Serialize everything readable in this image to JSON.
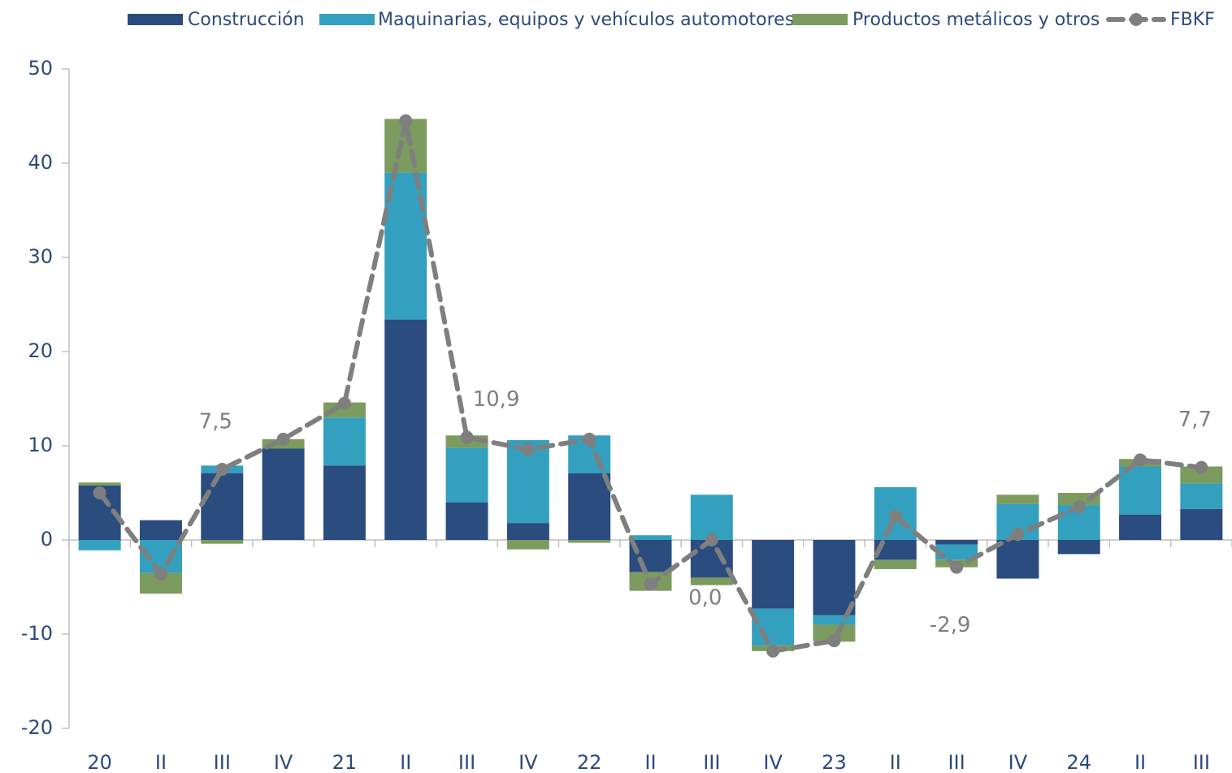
{
  "chart_data": {
    "type": "stacked_bar_line",
    "categories": [
      "20",
      "II",
      "III",
      "IV",
      "21",
      "II",
      "III",
      "IV",
      "22",
      "II",
      "III",
      "IV",
      "23",
      "II",
      "III",
      "IV",
      "24",
      "II",
      "III"
    ],
    "series": [
      {
        "name": "Construcción",
        "type": "bar",
        "color": "#2b4c7e",
        "values": [
          5.8,
          2.1,
          7.1,
          9.7,
          7.9,
          23.4,
          4.0,
          1.8,
          7.1,
          -3.4,
          -4.0,
          -7.3,
          -8.0,
          -2.1,
          -0.5,
          -4.1,
          -1.5,
          2.7,
          3.3
        ]
      },
      {
        "name": "Maquinarias, equipos y vehículos automotores",
        "type": "bar",
        "color": "#33a0bf",
        "values": [
          -1.1,
          -3.5,
          0.8,
          0.0,
          5.1,
          15.6,
          5.8,
          8.8,
          4.0,
          0.5,
          4.8,
          -3.9,
          -1.0,
          5.6,
          -1.6,
          3.8,
          3.7,
          5.1,
          2.7
        ]
      },
      {
        "name": "Productos metálicos y otros",
        "type": "bar",
        "color": "#7b9b5f",
        "values": [
          0.3,
          -2.2,
          -0.4,
          1.0,
          1.6,
          5.7,
          1.3,
          -1.0,
          -0.3,
          -2.0,
          -0.8,
          -0.6,
          -1.8,
          -1.0,
          -0.8,
          1.0,
          1.3,
          0.8,
          1.8
        ]
      },
      {
        "name": "FBKF",
        "type": "line",
        "color": "#7f7f7f",
        "values": [
          5.0,
          -3.6,
          7.5,
          10.7,
          14.5,
          44.5,
          10.9,
          9.6,
          10.7,
          -4.7,
          0.0,
          -11.8,
          -10.7,
          2.5,
          -2.9,
          0.6,
          3.5,
          8.5,
          7.7
        ],
        "value_labels": [
          null,
          null,
          "7,5",
          null,
          null,
          null,
          "10,9",
          null,
          null,
          null,
          "0,0",
          null,
          null,
          null,
          "-2,9",
          null,
          null,
          null,
          "7,7"
        ]
      }
    ],
    "ylim": [
      -20,
      50
    ],
    "yticks": [
      -20,
      -10,
      0,
      10,
      20,
      30,
      40,
      50
    ],
    "legend": "top"
  }
}
